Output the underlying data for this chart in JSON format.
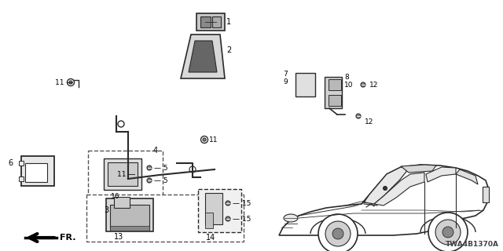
{
  "diagram_id": "TWA4B1370A",
  "bg_color": "#ffffff",
  "line_color": "#2a2a2a",
  "text_color": "#000000"
}
